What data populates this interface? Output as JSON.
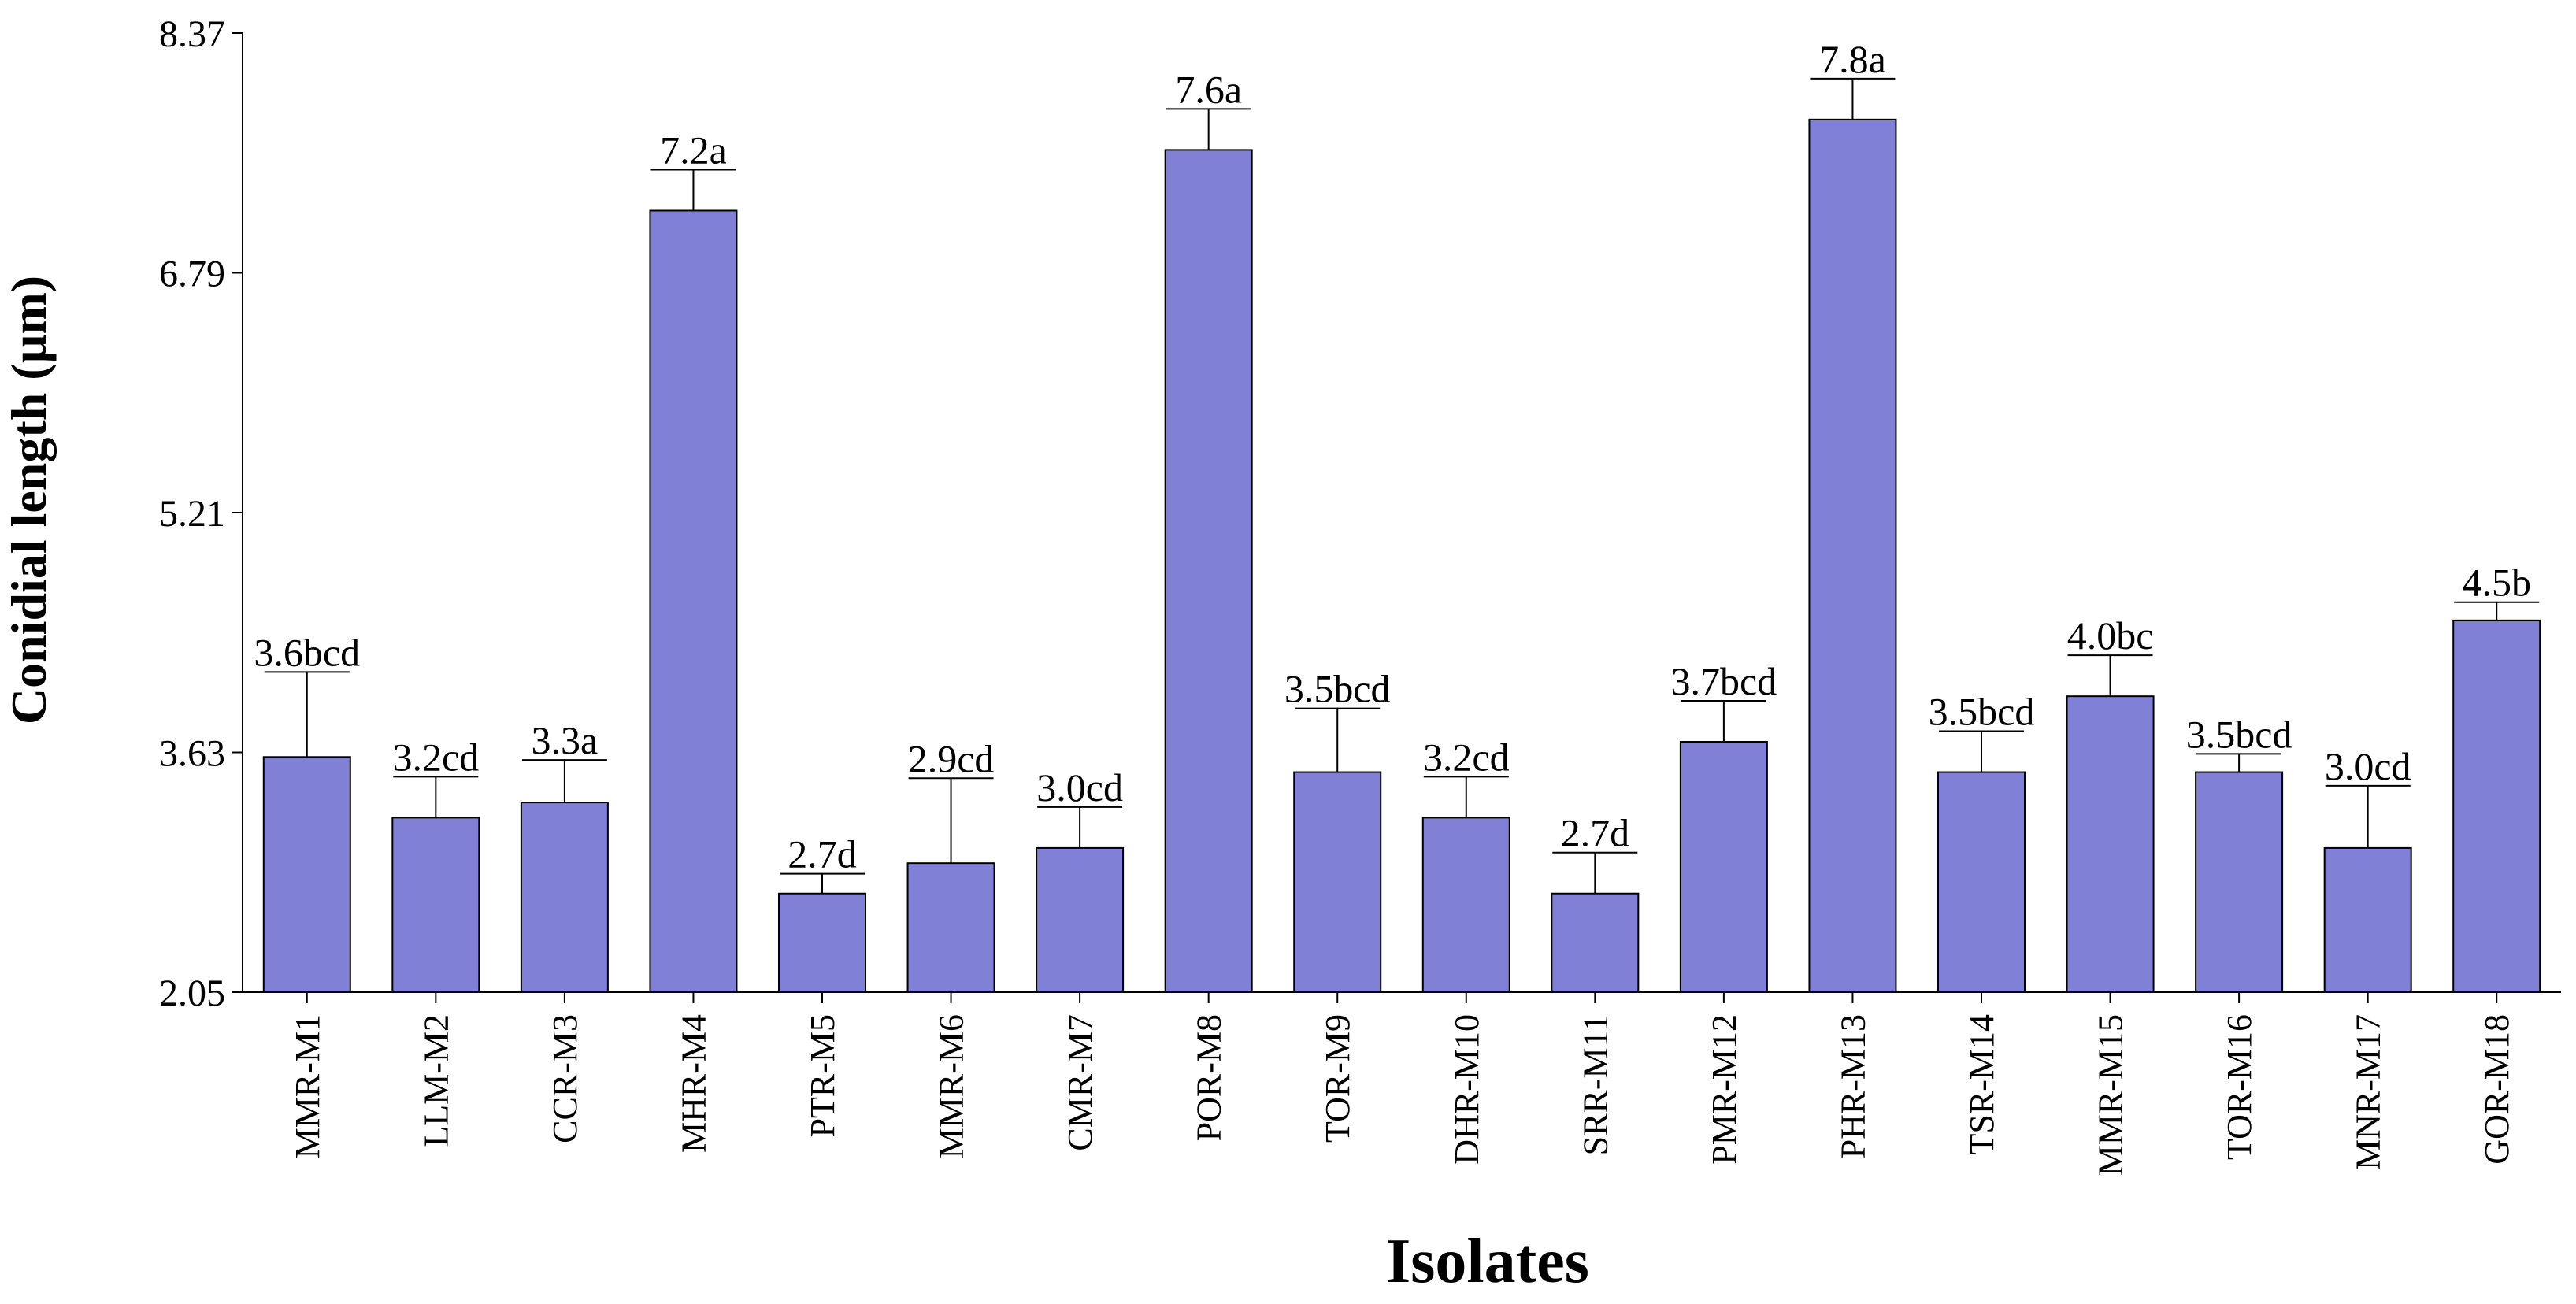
{
  "chart_data": {
    "type": "bar",
    "title": "",
    "xlabel": "Isolates",
    "ylabel": "Conidial length (µm)",
    "ylim": [
      2.05,
      8.37
    ],
    "yticks": [
      "2.05",
      "3.63",
      "5.21",
      "6.79",
      "8.37"
    ],
    "grid": false,
    "bar_color": "#8080d6",
    "categories": [
      "MMR-M1",
      "LLM-M2",
      "CCR-M3",
      "MHR-M4",
      "PTR-M5",
      "MMR-M6",
      "CMR-M7",
      "POR-M8",
      "TOR-M9",
      "DHR-M10",
      "SRR-M11",
      "PMR-M12",
      "PHR-M13",
      "TSR-M14",
      "MMR-M15",
      "TOR-M16",
      "MNR-M17",
      "GOR-M18"
    ],
    "values": [
      3.6,
      3.2,
      3.3,
      7.2,
      2.7,
      2.9,
      3.0,
      7.6,
      3.5,
      3.2,
      2.7,
      3.7,
      7.8,
      3.5,
      4.0,
      3.5,
      3.0,
      4.5
    ],
    "errors": [
      0.56,
      0.27,
      0.28,
      0.27,
      0.13,
      0.56,
      0.27,
      0.27,
      0.42,
      0.27,
      0.27,
      0.27,
      0.27,
      0.27,
      0.27,
      0.12,
      0.41,
      0.12
    ],
    "data_labels": [
      "3.6bcd",
      "3.2cd",
      "3.3a",
      "7.2a",
      "2.7d",
      "2.9cd",
      "3.0cd",
      "7.6a",
      "3.5bcd",
      "3.2cd",
      "2.7d",
      "3.7bcd",
      "7.8a",
      "3.5bcd",
      "4.0bc",
      "3.5bcd",
      "3.0cd",
      "4.5b"
    ]
  }
}
